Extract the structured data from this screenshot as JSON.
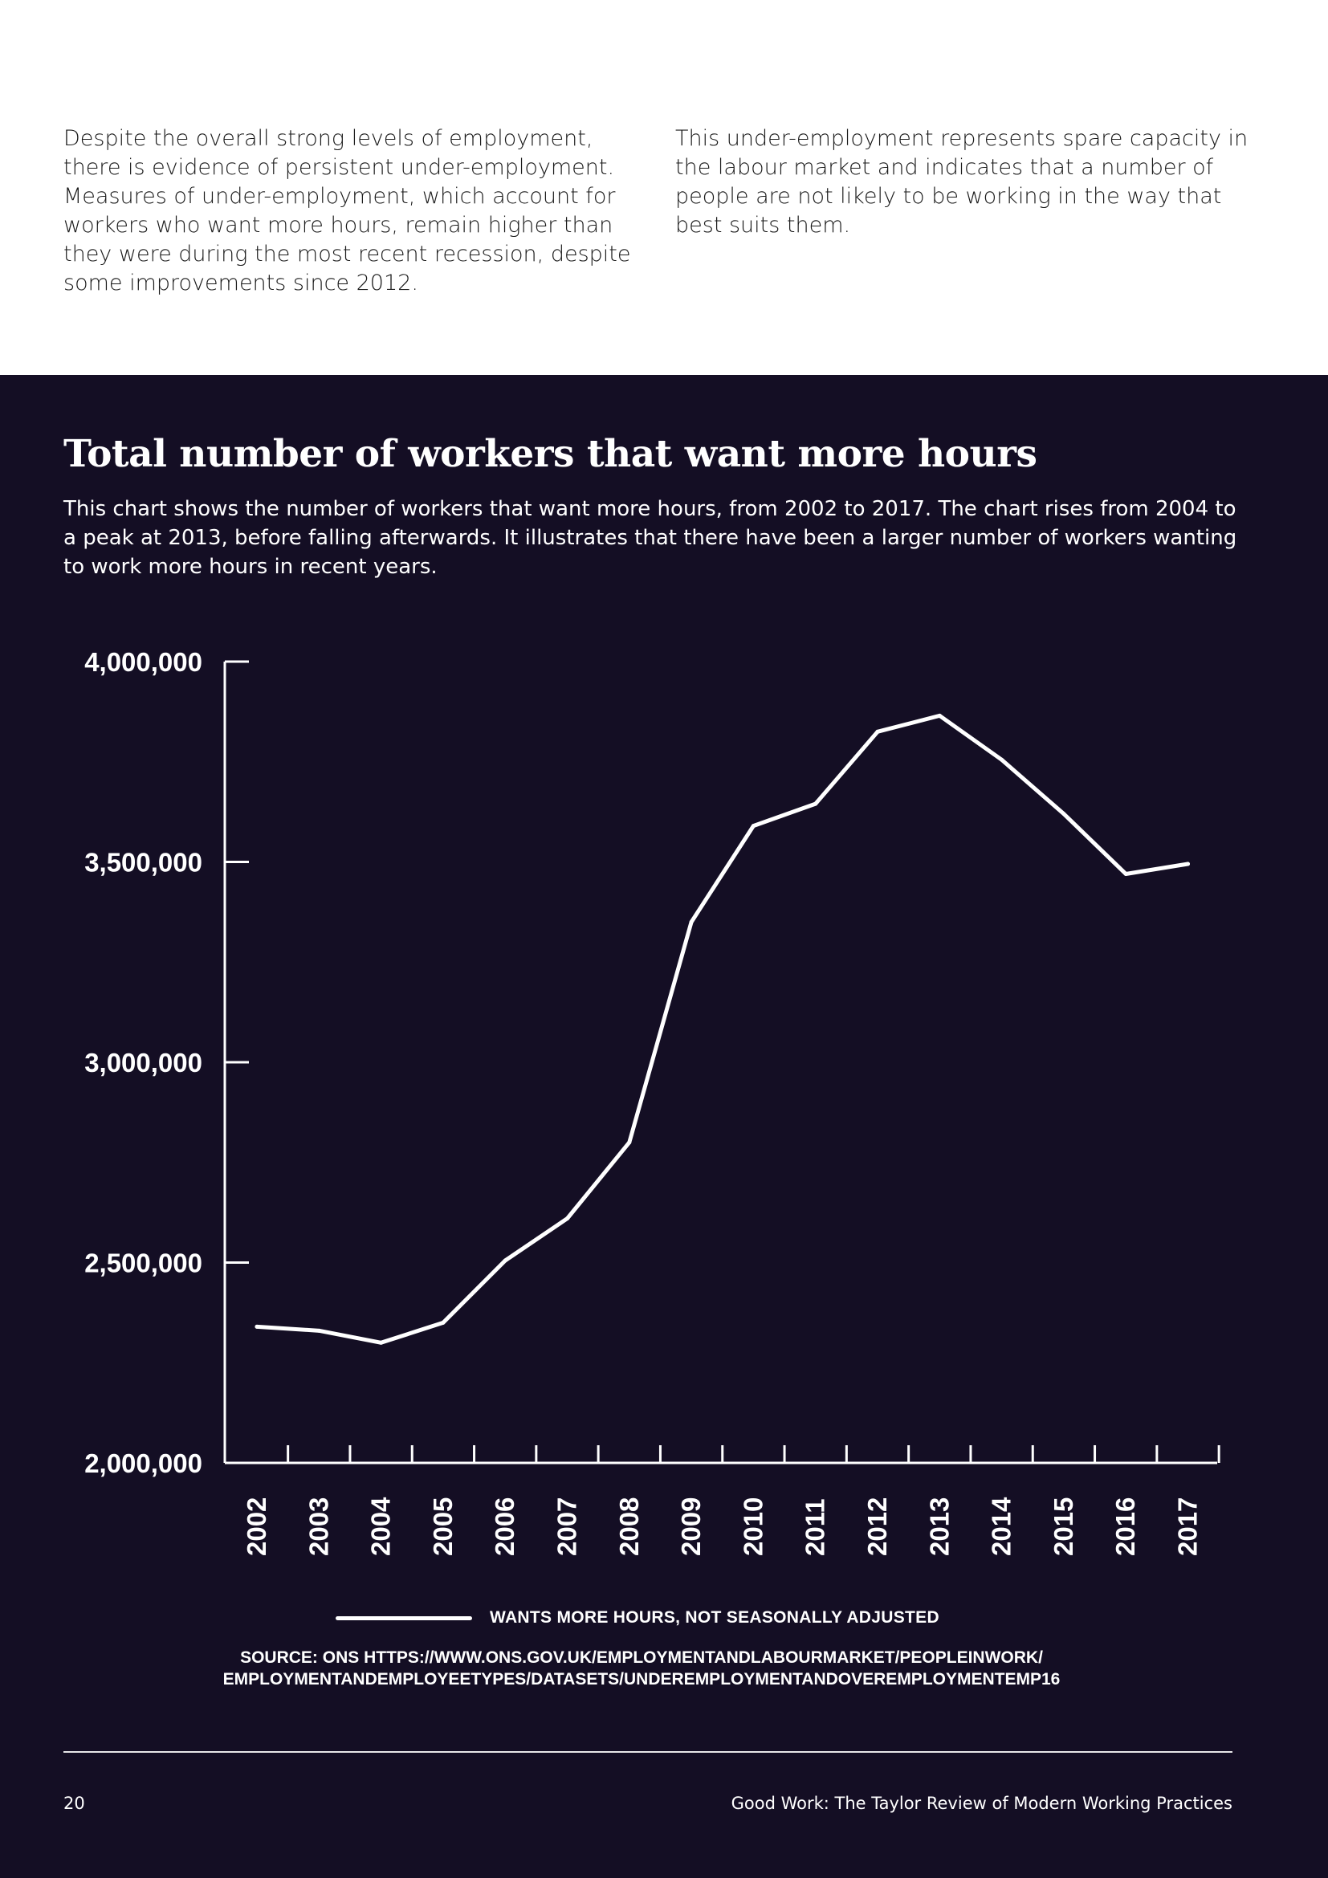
{
  "intro": {
    "col1": "Despite the overall strong levels of employment, there is evidence of persistent under-employment. Measures of under-employment, which account for workers who want more hours, remain higher than they were during the most recent recession, despite some improvements since 2012.",
    "col2": "This under-employment represents spare capacity in the labour market and indicates that a number of people are not likely to be working in the way that best suits them."
  },
  "chart_data": {
    "type": "line",
    "title": "Total number of workers that want more hours",
    "description": "This chart shows the number of workers that want more hours, from 2002 to 2017. The chart rises from 2004 to a peak at 2013, before falling afterwards. It illustrates that there have been a larger number of workers wanting to work more hours in recent years.",
    "categories": [
      "2002",
      "2003",
      "2004",
      "2005",
      "2006",
      "2007",
      "2008",
      "2009",
      "2010",
      "2011",
      "2012",
      "2013",
      "2014",
      "2015",
      "2016",
      "2017"
    ],
    "series": [
      {
        "name": "WANTS MORE HOURS, NOT SEASONALLY ADJUSTED",
        "values": [
          2340000,
          2330000,
          2300000,
          2350000,
          2505000,
          2610000,
          2800000,
          3350000,
          3590000,
          3645000,
          3825000,
          3865000,
          3755000,
          3620000,
          3470000,
          3495000
        ]
      }
    ],
    "ylim": [
      2000000,
      4000000
    ],
    "yticks": [
      2000000,
      2500000,
      3000000,
      3500000,
      4000000
    ],
    "ytick_labels": [
      "2,000,000",
      "2,500,000",
      "3,000,000",
      "3,500,000",
      "4,000,000"
    ],
    "xlabel": "",
    "ylabel": "",
    "line_color": "#ffffff",
    "background_color": "#140e24"
  },
  "source": {
    "line1": "SOURCE: ONS HTTPS://WWW.ONS.GOV.UK/EMPLOYMENTANDLABOURMARKET/PEOPLEINWORK/",
    "line2": "EMPLOYMENTANDEMPLOYEETYPES/DATASETS/UNDEREMPLOYMENTANDOVEREMPLOYMENTEMP16"
  },
  "footer": {
    "page_number": "20",
    "title": "Good Work: The Taylor Review of Modern Working Practices"
  }
}
